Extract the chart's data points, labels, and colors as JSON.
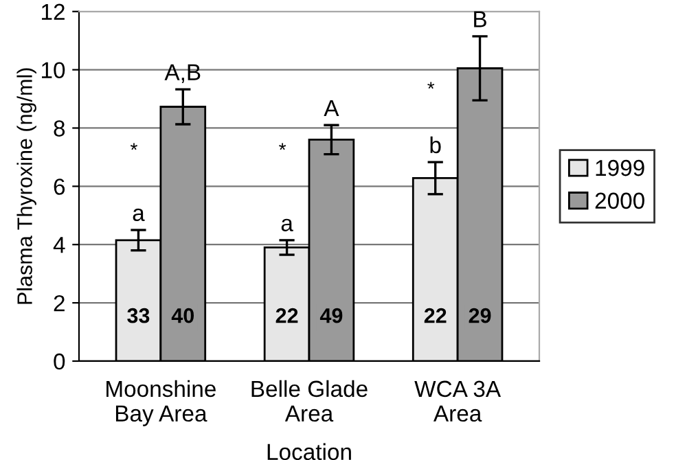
{
  "chart_data": {
    "type": "bar",
    "ylabel": "Plasma Thyroxine (ng/ml)",
    "xlabel": "Location",
    "categories": [
      "Moonshine\nBay Area",
      "Belle Glade\nArea",
      "WCA 3A\nArea"
    ],
    "series": [
      {
        "name": "1999",
        "color": "#e6e6e6",
        "values": [
          4.15,
          3.9,
          6.28
        ],
        "errors": [
          0.35,
          0.25,
          0.55
        ],
        "value_labels": [
          "a",
          "a",
          "b"
        ]
      },
      {
        "name": "2000",
        "color": "#9a9a9a",
        "values": [
          8.73,
          7.6,
          10.05
        ],
        "errors": [
          0.6,
          0.5,
          1.1
        ],
        "value_labels": [
          "A,B",
          "A",
          "B"
        ]
      }
    ],
    "annotations": [
      {
        "text": "33",
        "x": "Moonshine\nBay Area",
        "y": 1.5
      },
      {
        "text": "40",
        "x": "Moonshine\nBay Area",
        "y": 1.5
      },
      {
        "text": "22",
        "x": "Belle Glade\nArea",
        "y": 1.5
      },
      {
        "text": "49",
        "x": "Belle Glade\nArea",
        "y": 1.5
      },
      {
        "text": "22",
        "x": "WCA 3A\nArea",
        "y": 1.5
      },
      {
        "text": "29",
        "x": "WCA 3A\nArea",
        "y": 1.5
      },
      {
        "text": "*",
        "x": "Moonshine\nBay Area",
        "y": 7.2
      },
      {
        "text": "*",
        "x": "Belle Glade\nArea",
        "y": 7.2
      },
      {
        "text": "*",
        "x": "WCA 3A\nArea",
        "y": 9.3
      }
    ],
    "ylim": [
      0,
      12
    ],
    "yticks": [
      0,
      2,
      4,
      6,
      8,
      10,
      12
    ],
    "grid": "y",
    "legend": "right"
  }
}
